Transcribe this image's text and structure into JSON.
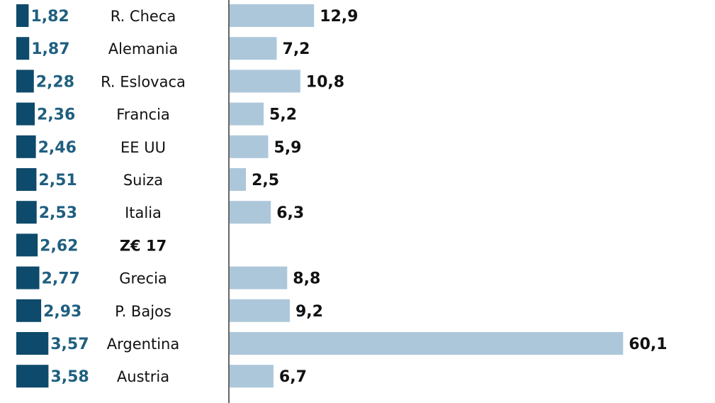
{
  "chart_data": {
    "type": "bar",
    "categories": [
      "R. Checa",
      "Alemania",
      "R. Eslovaca",
      "Francia",
      "EE UU",
      "Suiza",
      "Italia",
      "Z€ 17",
      "Grecia",
      "P. Bajos",
      "Argentina",
      "Austria",
      ""
    ],
    "highlighted_category": "Z€ 17",
    "series": [
      {
        "values": [
          1.82,
          1.87,
          2.28,
          2.36,
          2.46,
          2.51,
          2.53,
          2.62,
          2.77,
          2.93,
          3.57,
          3.58,
          null
        ],
        "labels": [
          "1,82",
          "1,87",
          "2,28",
          "2,36",
          "2,46",
          "2,51",
          "2,53",
          "2,62",
          "2,77",
          "2,93",
          "3,57",
          "3,58",
          ""
        ],
        "color": "#0e4a6b",
        "label_color": "#1f5f80"
      },
      {
        "values": [
          12.9,
          7.2,
          10.8,
          5.2,
          5.9,
          2.5,
          6.3,
          null,
          8.8,
          9.2,
          60.1,
          6.7,
          null
        ],
        "labels": [
          "12,9",
          "7,2",
          "10,8",
          "5,2",
          "5,9",
          "2,5",
          "6,3",
          "",
          "8,8",
          "9,2",
          "60,1",
          "6,7",
          ""
        ],
        "color": "#adc7da",
        "label_color": "#111111"
      }
    ],
    "axis_line_color": "#333333"
  }
}
